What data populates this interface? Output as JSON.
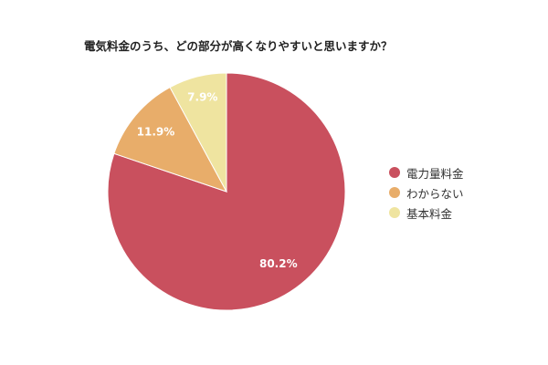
{
  "chart_data": {
    "type": "pie",
    "title": "電気料金のうち、どの部分が高くなりやすいと思いますか？",
    "slices": [
      {
        "label": "電力量料金",
        "value": 80.2,
        "value_label": "80.2%",
        "color": "#c9505e"
      },
      {
        "label": "わからない",
        "value": 11.9,
        "value_label": "11.9%",
        "color": "#e8ad6a"
      },
      {
        "label": "基本料金",
        "value": 7.9,
        "value_label": "7.9%",
        "color": "#efe4a0"
      }
    ],
    "legend_position": "right",
    "start_angle": "12 o'clock",
    "direction": "clockwise"
  }
}
